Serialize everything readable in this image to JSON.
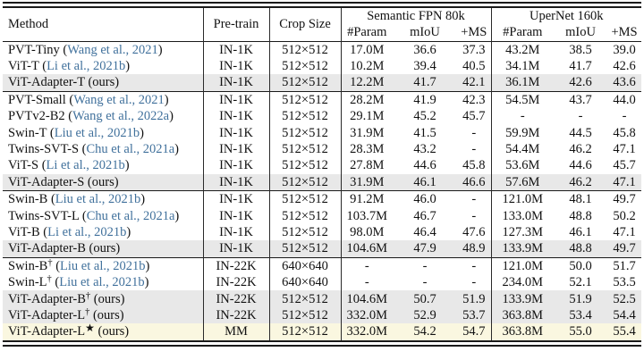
{
  "table": {
    "header": {
      "method": "Method",
      "pretrain": "Pre-train",
      "crop": "Crop Size",
      "group1": "Semantic FPN 80k",
      "group2": "UperNet 160k",
      "sub": [
        "#Param",
        "mIoU",
        "+MS"
      ]
    },
    "colors": {
      "citation_link": "#41719c",
      "highlight_gray": "#e8e8e8",
      "highlight_yellow": "#faf7e0",
      "rule": "#1a1a1a"
    },
    "groups": [
      [
        {
          "method": "PVT-Tiny",
          "sup": "",
          "cite": "Wang et al., 2021",
          "ours": false,
          "pretrain": "IN-1K",
          "crop": "512×512",
          "fpn": [
            "17.0M",
            "36.6",
            "37.3"
          ],
          "upernet": [
            "43.2M",
            "38.5",
            "39.0"
          ],
          "highlight": "none"
        },
        {
          "method": "ViT-T",
          "sup": "",
          "cite": "Li et al., 2021b",
          "ours": false,
          "pretrain": "IN-1K",
          "crop": "512×512",
          "fpn": [
            "10.2M",
            "39.4",
            "40.5"
          ],
          "upernet": [
            "34.1M",
            "41.7",
            "42.6"
          ],
          "highlight": "none"
        },
        {
          "method": "ViT-Adapter-T",
          "sup": "",
          "cite": "",
          "ours": true,
          "pretrain": "IN-1K",
          "crop": "512×512",
          "fpn": [
            "12.2M",
            "41.7",
            "42.1"
          ],
          "upernet": [
            "36.1M",
            "42.6",
            "43.6"
          ],
          "highlight": "gray"
        }
      ],
      [
        {
          "method": "PVT-Small",
          "sup": "",
          "cite": "Wang et al., 2021",
          "ours": false,
          "pretrain": "IN-1K",
          "crop": "512×512",
          "fpn": [
            "28.2M",
            "41.9",
            "42.3"
          ],
          "upernet": [
            "54.5M",
            "43.7",
            "44.0"
          ],
          "highlight": "none"
        },
        {
          "method": "PVTv2-B2",
          "sup": "",
          "cite": "Wang et al., 2022a",
          "ours": false,
          "pretrain": "IN-1K",
          "crop": "512×512",
          "fpn": [
            "29.1M",
            "45.2",
            "45.7"
          ],
          "upernet": [
            "-",
            "-",
            "-"
          ],
          "highlight": "none"
        },
        {
          "method": "Swin-T",
          "sup": "",
          "cite": "Liu et al., 2021b",
          "ours": false,
          "pretrain": "IN-1K",
          "crop": "512×512",
          "fpn": [
            "31.9M",
            "41.5",
            "-"
          ],
          "upernet": [
            "59.9M",
            "44.5",
            "45.8"
          ],
          "highlight": "none"
        },
        {
          "method": "Twins-SVT-S",
          "sup": "",
          "cite": "Chu et al., 2021a",
          "ours": false,
          "pretrain": "IN-1K",
          "crop": "512×512",
          "fpn": [
            "28.3M",
            "43.2",
            "-"
          ],
          "upernet": [
            "54.4M",
            "46.2",
            "47.1"
          ],
          "highlight": "none"
        },
        {
          "method": "ViT-S",
          "sup": "",
          "cite": "Li et al., 2021b",
          "ours": false,
          "pretrain": "IN-1K",
          "crop": "512×512",
          "fpn": [
            "27.8M",
            "44.6",
            "45.8"
          ],
          "upernet": [
            "53.6M",
            "44.6",
            "45.7"
          ],
          "highlight": "none"
        },
        {
          "method": "ViT-Adapter-S",
          "sup": "",
          "cite": "",
          "ours": true,
          "pretrain": "IN-1K",
          "crop": "512×512",
          "fpn": [
            "31.9M",
            "46.1",
            "46.6"
          ],
          "upernet": [
            "57.6M",
            "46.2",
            "47.1"
          ],
          "highlight": "gray"
        }
      ],
      [
        {
          "method": "Swin-B",
          "sup": "",
          "cite": "Liu et al., 2021b",
          "ours": false,
          "pretrain": "IN-1K",
          "crop": "512×512",
          "fpn": [
            "91.2M",
            "46.0",
            "-"
          ],
          "upernet": [
            "121.0M",
            "48.1",
            "49.7"
          ],
          "highlight": "none"
        },
        {
          "method": "Twins-SVT-L",
          "sup": "",
          "cite": "Chu et al., 2021a",
          "ours": false,
          "pretrain": "IN-1K",
          "crop": "512×512",
          "fpn": [
            "103.7M",
            "46.7",
            "-"
          ],
          "upernet": [
            "133.0M",
            "48.8",
            "50.2"
          ],
          "highlight": "none"
        },
        {
          "method": "ViT-B",
          "sup": "",
          "cite": "Li et al., 2021b",
          "ours": false,
          "pretrain": "IN-1K",
          "crop": "512×512",
          "fpn": [
            "98.0M",
            "46.4",
            "47.6"
          ],
          "upernet": [
            "127.3M",
            "46.1",
            "47.1"
          ],
          "highlight": "none"
        },
        {
          "method": "ViT-Adapter-B",
          "sup": "",
          "cite": "",
          "ours": true,
          "pretrain": "IN-1K",
          "crop": "512×512",
          "fpn": [
            "104.6M",
            "47.9",
            "48.9"
          ],
          "upernet": [
            "133.9M",
            "48.8",
            "49.7"
          ],
          "highlight": "gray"
        }
      ],
      [
        {
          "method": "Swin-B",
          "sup": "†",
          "cite": "Liu et al., 2021b",
          "ours": false,
          "pretrain": "IN-22K",
          "crop": "640×640",
          "fpn": [
            "-",
            "-",
            "-"
          ],
          "upernet": [
            "121.0M",
            "50.0",
            "51.7"
          ],
          "highlight": "none"
        },
        {
          "method": "Swin-L",
          "sup": "†",
          "cite": "Liu et al., 2021b",
          "ours": false,
          "pretrain": "IN-22K",
          "crop": "640×640",
          "fpn": [
            "-",
            "-",
            "-"
          ],
          "upernet": [
            "234.0M",
            "52.1",
            "53.5"
          ],
          "highlight": "none"
        },
        {
          "method": "ViT-Adapter-B",
          "sup": "†",
          "cite": "",
          "ours": true,
          "pretrain": "IN-22K",
          "crop": "512×512",
          "fpn": [
            "104.6M",
            "50.7",
            "51.9"
          ],
          "upernet": [
            "133.9M",
            "51.9",
            "52.5"
          ],
          "highlight": "gray"
        },
        {
          "method": "ViT-Adapter-L",
          "sup": "†",
          "cite": "",
          "ours": true,
          "pretrain": "IN-22K",
          "crop": "512×512",
          "fpn": [
            "332.0M",
            "52.9",
            "53.7"
          ],
          "upernet": [
            "363.8M",
            "53.4",
            "54.4"
          ],
          "highlight": "gray"
        },
        {
          "method": "ViT-Adapter-L",
          "sup": "★",
          "cite": "",
          "ours": true,
          "pretrain": "MM",
          "crop": "512×512",
          "fpn": [
            "332.0M",
            "54.2",
            "54.7"
          ],
          "upernet": [
            "363.8M",
            "55.0",
            "55.4"
          ],
          "highlight": "yellow"
        }
      ]
    ],
    "ours_label": "(ours)"
  }
}
